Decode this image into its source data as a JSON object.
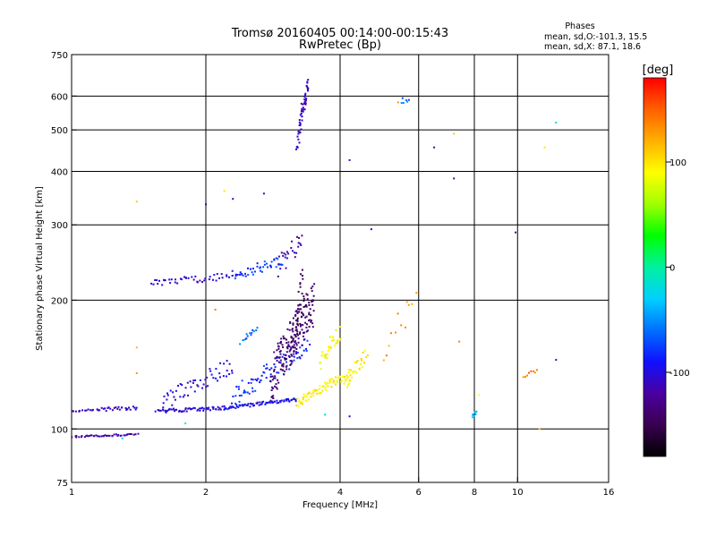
{
  "header": {
    "title_line1": "Tromsø 20160405 00:14:00-00:15:43",
    "title_line2": "RwPretec (Bp)"
  },
  "stats": {
    "heading": "Phases",
    "line_o": "mean, sd,O:-101.3, 15.5",
    "line_x": "mean, sd,X:  87.1, 18.6"
  },
  "colorbar": {
    "label": "[deg]",
    "ticks": [
      {
        "v": 100,
        "label": "100"
      },
      {
        "v": 0,
        "label": "0"
      },
      {
        "v": -100,
        "label": "-100"
      }
    ],
    "range": [
      -180,
      180
    ],
    "palette": [
      "#000000",
      "#3a0050",
      "#4b00a0",
      "#1010ff",
      "#0070ff",
      "#00d0ff",
      "#00f0a0",
      "#00ff00",
      "#a0ff00",
      "#ffff00",
      "#ffb000",
      "#ff6000",
      "#ff0000"
    ]
  },
  "chart_data": {
    "type": "scatter",
    "title": "Tromsø 20160405 00:14:00-00:15:43",
    "subtitle": "RwPretec (Bp)",
    "xlabel": "Frequency [MHz]",
    "ylabel": "Stationary phase Virtual Height [km]",
    "xscale": "log",
    "yscale": "log",
    "xlim": [
      1,
      16
    ],
    "ylim": [
      75,
      750
    ],
    "xticks": [
      {
        "v": 1,
        "label": "1"
      },
      {
        "v": 2,
        "label": "2"
      },
      {
        "v": 4,
        "label": "4"
      },
      {
        "v": 6,
        "label": "6"
      },
      {
        "v": 8,
        "label": "8"
      },
      {
        "v": 10,
        "label": "10"
      },
      {
        "v": 16,
        "label": "16"
      }
    ],
    "yticks": [
      {
        "v": 75,
        "label": "75"
      },
      {
        "v": 100,
        "label": "100"
      },
      {
        "v": 200,
        "label": "200"
      },
      {
        "v": 300,
        "label": "300"
      },
      {
        "v": 400,
        "label": "400"
      },
      {
        "v": 500,
        "label": "500"
      },
      {
        "v": 600,
        "label": "600"
      },
      {
        "v": 750,
        "label": "750"
      }
    ],
    "grid_x": [
      2,
      4,
      6,
      8,
      10
    ],
    "grid_y": [
      100,
      200,
      300,
      400,
      500,
      600
    ],
    "grid": true,
    "color_scale": "phase [deg]",
    "traces": [
      {
        "f": [
          1.0,
          1.4
        ],
        "h": [
          96,
          97
        ],
        "phase": -115,
        "n": 45,
        "jitter": 1
      },
      {
        "f": [
          1.0,
          1.15
        ],
        "h": [
          110,
          111
        ],
        "phase": -110,
        "n": 14,
        "jitter": 1
      },
      {
        "f": [
          1.15,
          1.4
        ],
        "h": [
          111,
          112
        ],
        "phase": -105,
        "n": 26,
        "jitter": 2
      },
      {
        "f": [
          1.55,
          2.2
        ],
        "h": [
          110,
          112
        ],
        "phase": -105,
        "n": 60,
        "jitter": 2
      },
      {
        "f": [
          2.2,
          3.2
        ],
        "h": [
          112,
          117
        ],
        "phase": -95,
        "n": 75,
        "jitter": 2
      },
      {
        "f": [
          1.6,
          2.3
        ],
        "h": [
          116,
          140
        ],
        "phase": -105,
        "n": 55,
        "jitter": 10
      },
      {
        "f": [
          2.3,
          3.4
        ],
        "h": [
          118,
          155
        ],
        "phase": -85,
        "n": 80,
        "jitter": 12
      },
      {
        "f": [
          2.8,
          3.5
        ],
        "h": [
          130,
          195
        ],
        "phase": -140,
        "n": 170,
        "jitter": 25
      },
      {
        "f": [
          3.1,
          3.3
        ],
        "h": [
          150,
          220
        ],
        "phase": -145,
        "n": 45,
        "jitter": 20
      },
      {
        "f": [
          3.2,
          4.2
        ],
        "h": [
          115,
          135
        ],
        "phase": 95,
        "n": 80,
        "jitter": 5
      },
      {
        "f": [
          3.6,
          4.0
        ],
        "h": [
          140,
          170
        ],
        "phase": 90,
        "n": 30,
        "jitter": 10
      },
      {
        "f": [
          4.1,
          4.6
        ],
        "h": [
          128,
          150
        ],
        "phase": 95,
        "n": 30,
        "jitter": 8
      },
      {
        "f": [
          1.5,
          2.3
        ],
        "h": [
          219,
          228
        ],
        "phase": -105,
        "n": 45,
        "jitter": 4
      },
      {
        "f": [
          2.3,
          3.0
        ],
        "h": [
          228,
          248
        ],
        "phase": -80,
        "n": 45,
        "jitter": 6
      },
      {
        "f": [
          2.9,
          3.3
        ],
        "h": [
          240,
          275
        ],
        "phase": -120,
        "n": 25,
        "jitter": 12
      },
      {
        "f": [
          3.2,
          3.4
        ],
        "h": [
          465,
          650
        ],
        "phase": -110,
        "n": 55,
        "jitter": 10
      },
      {
        "f": [
          5.5,
          5.7
        ],
        "h": [
          585,
          595
        ],
        "phase": -60,
        "n": 6,
        "jitter": 4
      },
      {
        "f": [
          2.4,
          2.6
        ],
        "h": [
          160,
          172
        ],
        "phase": -60,
        "n": 14,
        "jitter": 3
      },
      {
        "f": [
          7.9,
          8.1
        ],
        "h": [
          107,
          110
        ],
        "phase": -40,
        "n": 8,
        "jitter": 2
      },
      {
        "f": [
          10.3,
          11.0
        ],
        "h": [
          133,
          137
        ],
        "phase": 140,
        "n": 8,
        "jitter": 2
      },
      {
        "f": [
          5.0,
          5.9
        ],
        "h": [
          150,
          205
        ],
        "phase": 130,
        "n": 12,
        "jitter": 15
      }
    ],
    "points": [
      {
        "f": 1.4,
        "h": 340,
        "phase": 110
      },
      {
        "f": 2.0,
        "h": 335,
        "phase": -120
      },
      {
        "f": 2.2,
        "h": 360,
        "phase": 100
      },
      {
        "f": 2.3,
        "h": 345,
        "phase": -110
      },
      {
        "f": 2.7,
        "h": 355,
        "phase": -110
      },
      {
        "f": 4.2,
        "h": 425,
        "phase": -110
      },
      {
        "f": 4.7,
        "h": 293,
        "phase": -100
      },
      {
        "f": 6.5,
        "h": 455,
        "phase": -110
      },
      {
        "f": 7.2,
        "h": 490,
        "phase": 110
      },
      {
        "f": 7.2,
        "h": 385,
        "phase": -110
      },
      {
        "f": 9.9,
        "h": 288,
        "phase": -130
      },
      {
        "f": 11.5,
        "h": 455,
        "phase": 100
      },
      {
        "f": 12.2,
        "h": 520,
        "phase": -20
      },
      {
        "f": 12.2,
        "h": 145,
        "phase": -120
      },
      {
        "f": 8.2,
        "h": 120,
        "phase": 90
      },
      {
        "f": 7.4,
        "h": 160,
        "phase": 140
      },
      {
        "f": 5.4,
        "h": 580,
        "phase": 130
      },
      {
        "f": 1.4,
        "h": 155,
        "phase": 120
      },
      {
        "f": 1.4,
        "h": 135,
        "phase": 130
      },
      {
        "f": 2.1,
        "h": 190,
        "phase": 140
      },
      {
        "f": 3.7,
        "h": 108,
        "phase": -20
      },
      {
        "f": 4.2,
        "h": 107,
        "phase": -110
      },
      {
        "f": 11.2,
        "h": 100,
        "phase": 110
      },
      {
        "f": 1.3,
        "h": 95,
        "phase": -20
      },
      {
        "f": 1.8,
        "h": 103,
        "phase": 0
      }
    ]
  }
}
